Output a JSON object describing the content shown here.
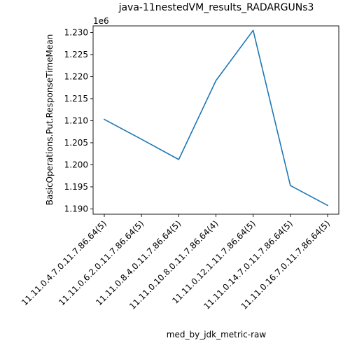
{
  "chart_data": {
    "type": "line",
    "title": "java-11nestedVM_results_RADARGUNs3",
    "xlabel": "med_by_jdk_metric-raw",
    "ylabel": "BasicOperations.Put.ResponseTimeMean",
    "y_scale_label": "1e6",
    "categories": [
      "11.11.0.4.7.0.11.7.86.64(5)",
      "11.11.0.6.2.0.11.7.86.64(5)",
      "11.11.0.8.4.0.11.7.86.64(5)",
      "11.11.0.10.8.0.11.7.86.64(4)",
      "11.11.0.12.1.11.7.86.64(5)",
      "11.11.0.14.7.0.11.7.86.64(5)",
      "11.11.0.16.7.0.11.7.86.64(5)"
    ],
    "values": [
      1.2103,
      1.2058,
      1.2012,
      1.2191,
      1.2305,
      1.1953,
      1.1908
    ],
    "yticks": [
      "1.190",
      "1.195",
      "1.200",
      "1.205",
      "1.210",
      "1.215",
      "1.220",
      "1.225",
      "1.230"
    ],
    "ylim": [
      1.1888,
      1.2315
    ],
    "grid": false,
    "line_color": "#1f77b4"
  }
}
